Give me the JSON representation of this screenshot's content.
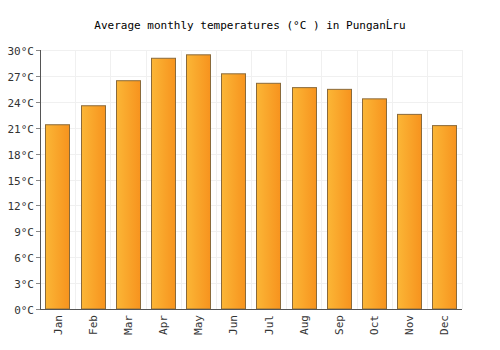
{
  "chart_data": {
    "type": "bar",
    "title": "Average monthly temperatures (°C ) in PunganĹru",
    "categories": [
      "Jan",
      "Feb",
      "Mar",
      "Apr",
      "May",
      "Jun",
      "Jul",
      "Aug",
      "Sep",
      "Oct",
      "Nov",
      "Dec"
    ],
    "values": [
      21.4,
      23.6,
      26.5,
      29.1,
      29.5,
      27.3,
      26.2,
      25.7,
      25.5,
      24.4,
      22.6,
      21.3
    ],
    "color": "#f7931e",
    "ylim": [
      0,
      30
    ],
    "yticks": [
      {
        "value": 0,
        "label": "0°C"
      },
      {
        "value": 3,
        "label": "3°C"
      },
      {
        "value": 6,
        "label": "6°C"
      },
      {
        "value": 9,
        "label": "9°C"
      },
      {
        "value": 12,
        "label": "12°C"
      },
      {
        "value": 15,
        "label": "15°C"
      },
      {
        "value": 18,
        "label": "18°C"
      },
      {
        "value": 21,
        "label": "21°C"
      },
      {
        "value": 24,
        "label": "24°C"
      },
      {
        "value": 27,
        "label": "27°C"
      },
      {
        "value": 30,
        "label": "30°C"
      }
    ],
    "grid": true
  }
}
